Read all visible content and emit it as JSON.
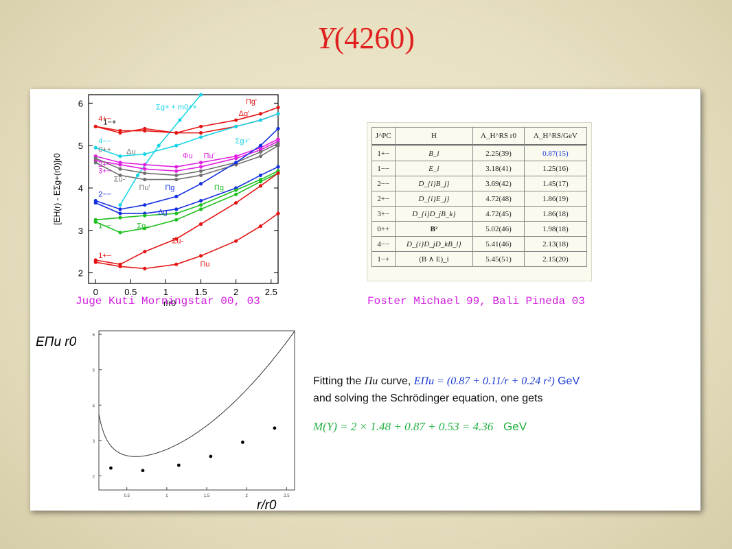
{
  "slide": {
    "title_italic": "Y",
    "title_rest": "(4260)"
  },
  "captions": {
    "left": "Juge Kuti Morningstar 00, 03",
    "right": "Foster Michael 99, Bali Pineda 03"
  },
  "fit_text": {
    "line1_prefix": "Fitting the",
    "line1_curve": "Πu",
    "line1_mid": "curve,",
    "line1_formula": "EΠu = (0.87 + 0.11/r + 0.24 r²)",
    "line1_unit": "GeV",
    "line2": "and solving the Schrödinger equation, one gets",
    "mass_formula": "M(Y) = 2 × 1.48 + 0.87 + 0.53 = 4.36",
    "mass_unit": "GeV"
  },
  "hybrid_table": {
    "headers": [
      "J^PC",
      "H",
      "Λ_H^RS r0",
      "Λ_H^RS/GeV"
    ],
    "rows": [
      [
        "1+−",
        "B_i",
        "2.25(39)",
        "0.87(15)"
      ],
      [
        "1−−",
        "E_i",
        "3.18(41)",
        "1.25(16)"
      ],
      [
        "2−−",
        "D_{i}B_j}",
        "3.69(42)",
        "1.45(17)"
      ],
      [
        "2+−",
        "D_{i}E_j}",
        "4.72(48)",
        "1.86(19)"
      ],
      [
        "3+−",
        "D_{i}D_jB_k}",
        "4.72(45)",
        "1.86(18)"
      ],
      [
        "0++",
        "B²",
        "5.02(46)",
        "1.98(18)"
      ],
      [
        "4−−",
        "D_{i}D_jD_kB_l}",
        "5.41(46)",
        "2.13(18)"
      ],
      [
        "1−+",
        "(B ∧ E)_i",
        "5.45(51)",
        "2.15(20)"
      ]
    ]
  },
  "chart_data": [
    {
      "type": "line",
      "title": "",
      "xlabel": "r/r0",
      "ylabel": "[EH(r) - EΣg+(r0)]r0",
      "xlim": [
        -0.1,
        2.6
      ],
      "ylim": [
        1.75,
        6.2
      ],
      "xticks": [
        "0",
        "0.5",
        "1",
        "1.5",
        "2",
        "2.5"
      ],
      "yticks": [
        "2",
        "3",
        "4",
        "5",
        "6"
      ],
      "grid": false,
      "series": [
        {
          "name": "Σg+ + m0++",
          "color": "#19d4e6",
          "x": [
            0.35,
            0.6,
            0.9,
            1.2,
            1.5
          ],
          "values": [
            3.6,
            4.3,
            5.0,
            5.6,
            6.2
          ]
        },
        {
          "name": "Δg'",
          "color": "#e41414",
          "x": [
            0,
            0.35,
            0.7,
            1.15,
            1.5,
            2.0,
            2.35,
            2.6
          ],
          "values": [
            5.45,
            5.35,
            5.35,
            5.3,
            5.3,
            5.45,
            5.6,
            5.75
          ]
        },
        {
          "name": "Πg'",
          "color": "#e41414",
          "x": [
            0,
            0.35,
            0.7,
            1.15,
            1.5,
            2.0,
            2.35,
            2.6
          ],
          "values": [
            5.45,
            5.3,
            5.4,
            5.3,
            5.45,
            5.6,
            5.75,
            5.9
          ]
        },
        {
          "name": "Σg+'",
          "color": "#19d4e6",
          "x": [
            0,
            0.35,
            0.7,
            1.15,
            1.5,
            2.0,
            2.35,
            2.6
          ],
          "values": [
            4.95,
            4.75,
            4.8,
            5.0,
            5.2,
            5.45,
            5.6,
            5.75
          ]
        },
        {
          "name": "Πu'",
          "color": "#e020e0",
          "x": [
            0,
            0.35,
            0.7,
            1.15,
            1.5,
            2.0,
            2.35,
            2.6
          ],
          "values": [
            4.75,
            4.6,
            4.55,
            4.5,
            4.6,
            4.75,
            4.95,
            5.15
          ]
        },
        {
          "name": "Φu",
          "color": "#e020e0",
          "x": [
            0,
            0.35,
            0.7,
            1.15,
            1.5,
            2.0,
            2.35,
            2.6
          ],
          "values": [
            4.65,
            4.55,
            4.45,
            4.4,
            4.5,
            4.7,
            4.9,
            5.1
          ]
        },
        {
          "name": "Δu",
          "color": "#707070",
          "x": [
            0,
            0.35,
            0.7,
            1.15,
            1.5,
            2.0,
            2.35,
            2.6
          ],
          "values": [
            4.7,
            4.45,
            4.35,
            4.3,
            4.4,
            4.6,
            4.85,
            5.05
          ]
        },
        {
          "name": "Σu-'",
          "color": "#707070",
          "x": [
            0,
            0.35,
            0.7,
            1.15,
            1.5,
            2.0,
            2.35,
            2.6
          ],
          "values": [
            4.6,
            4.3,
            4.2,
            4.2,
            4.3,
            4.55,
            4.75,
            5.0
          ]
        },
        {
          "name": "Πg",
          "color": "#1430e0",
          "x": [
            0,
            0.35,
            0.7,
            1.15,
            1.5,
            2.0,
            2.35,
            2.6
          ],
          "values": [
            3.7,
            3.5,
            3.6,
            3.8,
            4.1,
            4.6,
            5.0,
            5.4
          ]
        },
        {
          "name": "Δg",
          "color": "#1430e0",
          "x": [
            0,
            0.35,
            0.7,
            1.15,
            1.5,
            2.0,
            2.35,
            2.6
          ],
          "values": [
            3.65,
            3.4,
            3.4,
            3.5,
            3.7,
            4.0,
            4.3,
            4.5
          ]
        },
        {
          "name": "Πg (green)",
          "color": "#20c020",
          "x": [
            0,
            0.35,
            0.7,
            1.15,
            1.5,
            2.0,
            2.35,
            2.6
          ],
          "values": [
            3.25,
            3.3,
            3.35,
            3.4,
            3.6,
            3.95,
            4.2,
            4.4
          ]
        },
        {
          "name": "Σg-",
          "color": "#20c020",
          "x": [
            0,
            0.35,
            0.7,
            1.15,
            1.5,
            2.0,
            2.35,
            2.6
          ],
          "values": [
            3.2,
            2.95,
            3.05,
            3.25,
            3.5,
            3.85,
            4.15,
            4.35
          ]
        },
        {
          "name": "Σu-",
          "color": "#e41414",
          "x": [
            0,
            0.35,
            0.7,
            1.15,
            1.5,
            2.0,
            2.35,
            2.6
          ],
          "values": [
            2.3,
            2.2,
            2.5,
            2.8,
            3.15,
            3.65,
            4.05,
            4.35
          ]
        },
        {
          "name": "Πu",
          "color": "#e41414",
          "x": [
            0,
            0.35,
            0.7,
            1.15,
            1.5,
            2.0,
            2.35,
            2.6
          ],
          "values": [
            2.25,
            2.15,
            2.1,
            2.2,
            2.4,
            2.75,
            3.1,
            3.4
          ]
        }
      ],
      "annotations": [
        "4+−",
        "1−+",
        "4−−",
        "0++",
        "2+−",
        "3+−",
        "2−−",
        "1+−",
        "1−−",
        "Σg+ + m0++",
        "Δg'",
        "Πg'",
        "Σg+'",
        "Φu",
        "Πu'",
        "Δu",
        "Σu-'",
        "Πu'",
        "Πg",
        "Σg-",
        "Δg",
        "Πg",
        "Σu-",
        "Πu"
      ]
    },
    {
      "type": "line",
      "title": "",
      "xlabel": "r/r0",
      "ylabel": "EΠu r0",
      "xlim": [
        0.15,
        2.6
      ],
      "ylim": [
        1.6,
        6.1
      ],
      "xticks": [
        "0.5",
        "1",
        "1.5",
        "2",
        "2.5"
      ],
      "yticks": [
        "2",
        "3",
        "4",
        "5",
        "6"
      ],
      "grid": false,
      "series": [
        {
          "name": "",
          "x": [
            0.3,
            0.7,
            1.15,
            1.55,
            1.95,
            2.35
          ],
          "values": [
            2.22,
            2.15,
            2.3,
            2.55,
            2.95,
            3.35
          ]
        }
      ]
    }
  ]
}
